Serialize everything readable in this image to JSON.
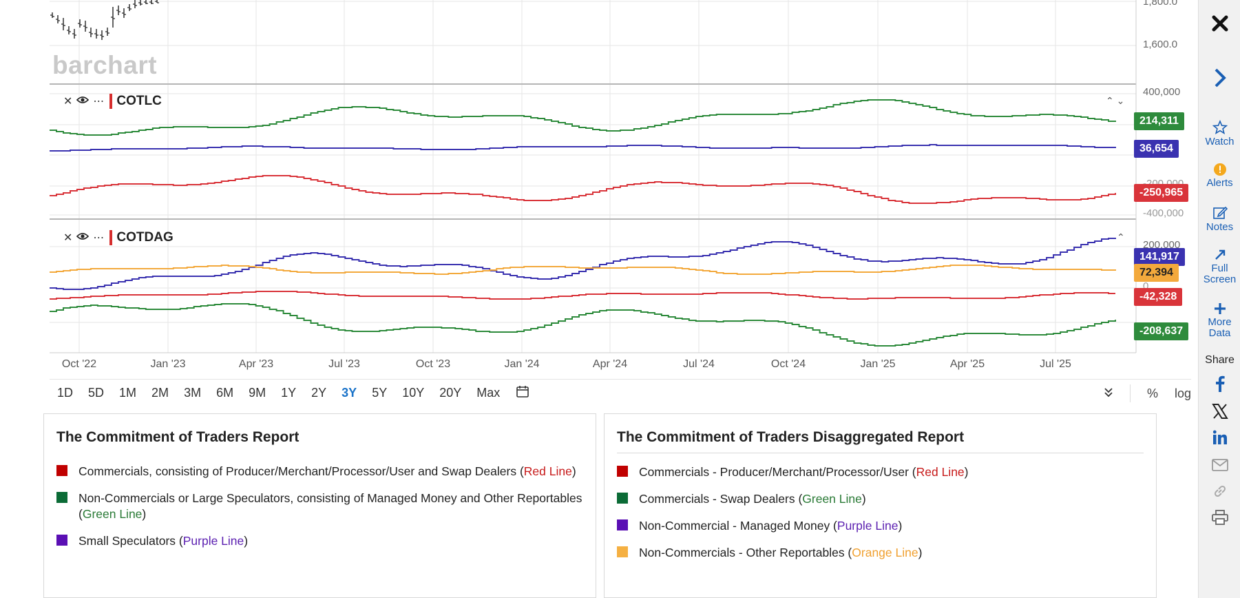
{
  "watermark": "barchart",
  "price_pane": {
    "axis_labels": [
      "1,800.0",
      "1,600.0"
    ]
  },
  "cotlc_pane": {
    "name": "COTLC",
    "axis_labels": [
      "400,000",
      "-200,000",
      "-400,000"
    ],
    "badges": [
      {
        "value": "214,311",
        "color": "#2e8b3c"
      },
      {
        "value": "36,654",
        "color": "#3a32b0"
      },
      {
        "value": "-250,965",
        "color": "#d9343a"
      }
    ]
  },
  "cotdag_pane": {
    "name": "COTDAG",
    "axis_labels": [
      "200,000",
      "0"
    ],
    "badges": [
      {
        "value": "141,917",
        "color": "#3a32b0"
      },
      {
        "value": "72,394",
        "color": "#f3a93c"
      },
      {
        "value": "-42,328",
        "color": "#d9343a"
      },
      {
        "value": "-208,637",
        "color": "#2e8b3c"
      }
    ]
  },
  "time_axis": [
    "Oct '22",
    "Jan '23",
    "Apr '23",
    "Jul '23",
    "Oct '23",
    "Jan '24",
    "Apr '24",
    "Jul '24",
    "Oct '24",
    "Jan '25",
    "Apr '25",
    "Jul '25"
  ],
  "toolbar": {
    "ranges": [
      "1D",
      "5D",
      "1M",
      "2M",
      "3M",
      "6M",
      "9M",
      "1Y",
      "2Y",
      "3Y",
      "5Y",
      "10Y",
      "20Y",
      "Max"
    ],
    "active_range": "3Y",
    "percent_label": "%",
    "log_label": "log"
  },
  "panel_cot": {
    "title": "The Commitment of Traders Report",
    "items": [
      {
        "text": "Commercials, consisting of Producer/Merchant/Processor/User and Swap Dealers (",
        "line": "Red Line",
        "tail": ")",
        "color": "#c00000",
        "cls": "c-red"
      },
      {
        "text": "Non-Commercials or Large Speculators, consisting of Managed Money and Other Reportables (",
        "line": "Green Line",
        "tail": ")",
        "color": "#0b6b36",
        "cls": "c-green"
      },
      {
        "text": "Small Speculators (",
        "line": "Purple Line",
        "tail": ")",
        "color": "#5a0fb4",
        "cls": "c-purple"
      }
    ]
  },
  "panel_dag": {
    "title": "The Commitment of Traders Disaggregated Report",
    "items": [
      {
        "text": "Commercials - Producer/Merchant/Processor/User (",
        "line": "Red Line",
        "tail": ")",
        "color": "#c00000",
        "cls": "c-red"
      },
      {
        "text": "Commercials - Swap Dealers (",
        "line": "Green Line",
        "tail": ")",
        "color": "#0b6b36",
        "cls": "c-green"
      },
      {
        "text": "Non-Commercial - Managed Money (",
        "line": "Purple Line",
        "tail": ")",
        "color": "#5a0fb4",
        "cls": "c-purple"
      },
      {
        "text": "Non-Commercials - Other Reportables (",
        "line": "Orange Line",
        "tail": ")",
        "color": "#f5b042",
        "cls": "c-orange"
      }
    ]
  },
  "sidebar": {
    "watch": "Watch",
    "alerts": "Alerts",
    "notes": "Notes",
    "full_screen_1": "Full",
    "full_screen_2": "Screen",
    "more_data_1": "More",
    "more_data_2": "Data",
    "share": "Share"
  }
}
